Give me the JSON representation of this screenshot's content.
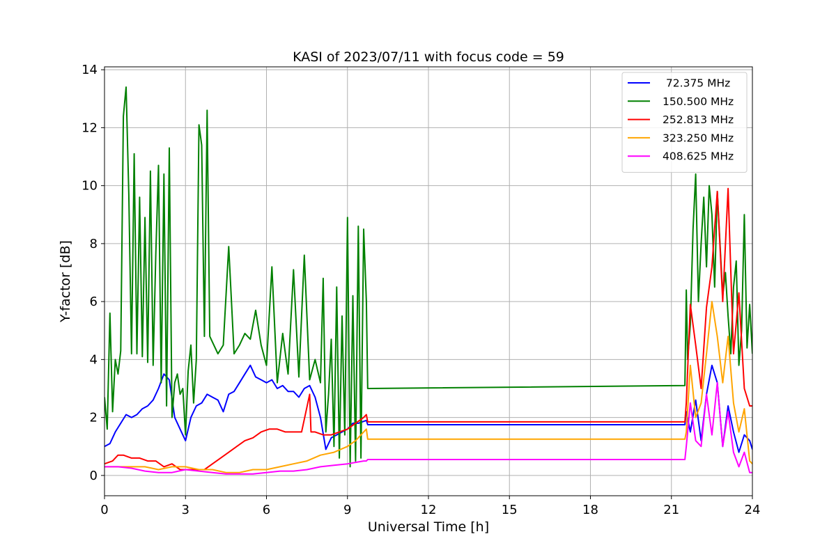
{
  "chart_data": {
    "type": "line",
    "title": "KASI of 2023/07/11 with focus code = 59",
    "xlabel": "Universal Time [h]",
    "ylabel": "Y-factor [dB]",
    "xlim": [
      0,
      24
    ],
    "ylim": [
      -0.7,
      14.1
    ],
    "xticks": [
      0,
      3,
      6,
      9,
      12,
      15,
      18,
      21,
      24
    ],
    "yticks": [
      0,
      2,
      4,
      6,
      8,
      10,
      12,
      14
    ],
    "grid": true,
    "legend_position": "top-right",
    "series": [
      {
        "name": " 72.375 MHz",
        "color": "#0000ff",
        "x": [
          0,
          0.2,
          0.4,
          0.6,
          0.8,
          1.0,
          1.2,
          1.4,
          1.6,
          1.8,
          2.0,
          2.2,
          2.4,
          2.6,
          2.8,
          3.0,
          3.2,
          3.4,
          3.6,
          3.8,
          4.0,
          4.2,
          4.4,
          4.6,
          4.8,
          5.0,
          5.2,
          5.4,
          5.6,
          5.8,
          6.0,
          6.2,
          6.4,
          6.6,
          6.8,
          7.0,
          7.2,
          7.4,
          7.6,
          7.8,
          8.0,
          8.2,
          8.4,
          8.6,
          8.8,
          9.0,
          9.2,
          9.4,
          9.7,
          9.75,
          21.5,
          21.55,
          21.7,
          21.9,
          22.1,
          22.3,
          22.5,
          22.7,
          22.9,
          23.1,
          23.3,
          23.5,
          23.7,
          23.9,
          24.0
        ],
        "values": [
          1.0,
          1.1,
          1.5,
          1.8,
          2.1,
          2.0,
          2.1,
          2.3,
          2.4,
          2.6,
          3.0,
          3.5,
          3.3,
          2.0,
          1.6,
          1.2,
          2.0,
          2.4,
          2.5,
          2.8,
          2.7,
          2.6,
          2.2,
          2.8,
          2.9,
          3.2,
          3.5,
          3.8,
          3.4,
          3.3,
          3.2,
          3.3,
          3.0,
          3.1,
          2.9,
          2.9,
          2.7,
          3.0,
          3.1,
          2.7,
          2.0,
          0.9,
          1.3,
          1.4,
          1.5,
          1.6,
          1.8,
          1.8,
          1.9,
          1.75,
          1.75,
          2.2,
          1.5,
          2.6,
          1.2,
          2.8,
          3.8,
          3.2,
          1.0,
          2.4,
          1.5,
          0.8,
          1.4,
          1.2,
          0.9
        ]
      },
      {
        "name": "150.500 MHz",
        "color": "#008000",
        "x": [
          0,
          0.1,
          0.2,
          0.3,
          0.4,
          0.5,
          0.6,
          0.7,
          0.8,
          0.9,
          1.0,
          1.1,
          1.2,
          1.3,
          1.4,
          1.5,
          1.6,
          1.7,
          1.8,
          1.9,
          2.0,
          2.1,
          2.2,
          2.3,
          2.4,
          2.5,
          2.6,
          2.7,
          2.8,
          2.9,
          3.0,
          3.1,
          3.2,
          3.3,
          3.4,
          3.5,
          3.6,
          3.7,
          3.8,
          3.9,
          4.0,
          4.2,
          4.4,
          4.6,
          4.8,
          5.0,
          5.2,
          5.4,
          5.6,
          5.8,
          6.0,
          6.2,
          6.4,
          6.6,
          6.8,
          7.0,
          7.2,
          7.4,
          7.6,
          7.8,
          8.0,
          8.1,
          8.2,
          8.3,
          8.4,
          8.5,
          8.6,
          8.7,
          8.8,
          8.9,
          9.0,
          9.1,
          9.2,
          9.3,
          9.4,
          9.5,
          9.6,
          9.7,
          9.75,
          21.5,
          21.55,
          21.6,
          21.7,
          21.8,
          21.9,
          22.0,
          22.1,
          22.2,
          22.3,
          22.4,
          22.5,
          22.6,
          22.7,
          22.8,
          22.9,
          23.0,
          23.1,
          23.2,
          23.3,
          23.4,
          23.5,
          23.6,
          23.7,
          23.8,
          23.9,
          24.0
        ],
        "values": [
          2.7,
          1.6,
          5.6,
          2.2,
          4.0,
          3.5,
          4.3,
          12.4,
          13.4,
          9.7,
          4.2,
          11.1,
          4.2,
          9.6,
          4.1,
          8.9,
          3.9,
          10.5,
          3.8,
          7.6,
          10.7,
          3.2,
          10.4,
          2.4,
          11.3,
          2.0,
          3.2,
          3.5,
          2.8,
          3.0,
          1.4,
          3.6,
          4.5,
          2.5,
          4.0,
          12.1,
          11.4,
          4.8,
          12.6,
          4.8,
          4.6,
          4.2,
          4.5,
          7.9,
          4.2,
          4.5,
          4.9,
          4.7,
          5.7,
          4.5,
          3.8,
          7.2,
          3.2,
          4.9,
          3.5,
          7.1,
          3.4,
          7.6,
          3.3,
          4.0,
          3.2,
          6.8,
          1.5,
          2.8,
          4.7,
          1.0,
          6.5,
          0.6,
          5.5,
          1.4,
          8.9,
          0.3,
          6.2,
          0.5,
          8.6,
          0.6,
          8.5,
          6.0,
          3.0,
          3.1,
          6.4,
          4.0,
          5.2,
          8.5,
          10.4,
          6.0,
          8.0,
          9.6,
          7.2,
          10.0,
          9.0,
          6.5,
          9.8,
          8.0,
          6.2,
          7.0,
          5.5,
          4.2,
          6.5,
          7.4,
          3.8,
          5.0,
          9.0,
          4.4,
          5.9,
          4.2
        ]
      },
      {
        "name": "252.813 MHz",
        "color": "#ff0000",
        "x": [
          0,
          0.3,
          0.5,
          0.7,
          1.0,
          1.3,
          1.6,
          1.9,
          2.2,
          2.5,
          2.8,
          3.1,
          3.4,
          3.7,
          4.0,
          4.3,
          4.6,
          4.9,
          5.2,
          5.5,
          5.8,
          6.1,
          6.4,
          6.7,
          7.0,
          7.3,
          7.6,
          7.65,
          7.8,
          8.1,
          8.4,
          8.7,
          9.0,
          9.3,
          9.6,
          9.7,
          9.75,
          21.5,
          21.55,
          21.7,
          21.9,
          22.1,
          22.3,
          22.5,
          22.7,
          22.9,
          23.1,
          23.3,
          23.5,
          23.7,
          23.9,
          24.0
        ],
        "values": [
          0.4,
          0.5,
          0.7,
          0.7,
          0.6,
          0.6,
          0.5,
          0.5,
          0.3,
          0.4,
          0.2,
          0.2,
          0.2,
          0.2,
          0.4,
          0.6,
          0.8,
          1.0,
          1.2,
          1.3,
          1.5,
          1.6,
          1.6,
          1.5,
          1.5,
          1.5,
          2.8,
          1.5,
          1.5,
          1.4,
          1.4,
          1.5,
          1.6,
          1.8,
          2.0,
          2.1,
          1.85,
          1.85,
          2.5,
          5.9,
          4.5,
          3.0,
          5.8,
          7.2,
          9.8,
          6.0,
          9.9,
          4.2,
          6.3,
          3.0,
          2.4,
          2.4
        ]
      },
      {
        "name": "323.250 MHz",
        "color": "#ffa500",
        "x": [
          0,
          0.5,
          1.0,
          1.5,
          2.0,
          2.5,
          3.0,
          3.5,
          4.0,
          4.5,
          5.0,
          5.5,
          6.0,
          6.5,
          7.0,
          7.5,
          8.0,
          8.5,
          9.0,
          9.3,
          9.6,
          9.7,
          9.75,
          21.5,
          21.55,
          21.7,
          21.9,
          22.1,
          22.3,
          22.5,
          22.7,
          22.9,
          23.1,
          23.3,
          23.5,
          23.7,
          23.9,
          24.0
        ],
        "values": [
          0.3,
          0.3,
          0.3,
          0.3,
          0.2,
          0.3,
          0.3,
          0.2,
          0.2,
          0.1,
          0.1,
          0.2,
          0.2,
          0.3,
          0.4,
          0.5,
          0.7,
          0.8,
          1.0,
          1.2,
          1.5,
          1.6,
          1.25,
          1.25,
          1.5,
          3.8,
          2.0,
          2.5,
          4.2,
          6.0,
          4.8,
          3.2,
          4.8,
          2.5,
          1.5,
          2.3,
          0.5,
          0.4
        ]
      },
      {
        "name": "408.625 MHz",
        "color": "#ff00ff",
        "x": [
          0,
          0.5,
          1.0,
          1.5,
          2.0,
          2.5,
          3.0,
          3.5,
          4.0,
          4.5,
          5.0,
          5.5,
          6.0,
          6.5,
          7.0,
          7.5,
          8.0,
          8.5,
          9.0,
          9.3,
          9.6,
          9.7,
          9.75,
          21.5,
          21.55,
          21.7,
          21.9,
          22.1,
          22.3,
          22.5,
          22.7,
          22.9,
          23.1,
          23.3,
          23.5,
          23.7,
          23.9,
          24.0
        ],
        "values": [
          0.3,
          0.3,
          0.25,
          0.15,
          0.1,
          0.1,
          0.2,
          0.15,
          0.1,
          0.05,
          0.05,
          0.05,
          0.1,
          0.15,
          0.15,
          0.2,
          0.3,
          0.35,
          0.4,
          0.45,
          0.5,
          0.5,
          0.55,
          0.55,
          1.0,
          2.5,
          1.2,
          1.0,
          2.8,
          1.4,
          3.2,
          1.0,
          2.2,
          0.8,
          0.3,
          0.8,
          0.1,
          0.1
        ]
      }
    ]
  }
}
